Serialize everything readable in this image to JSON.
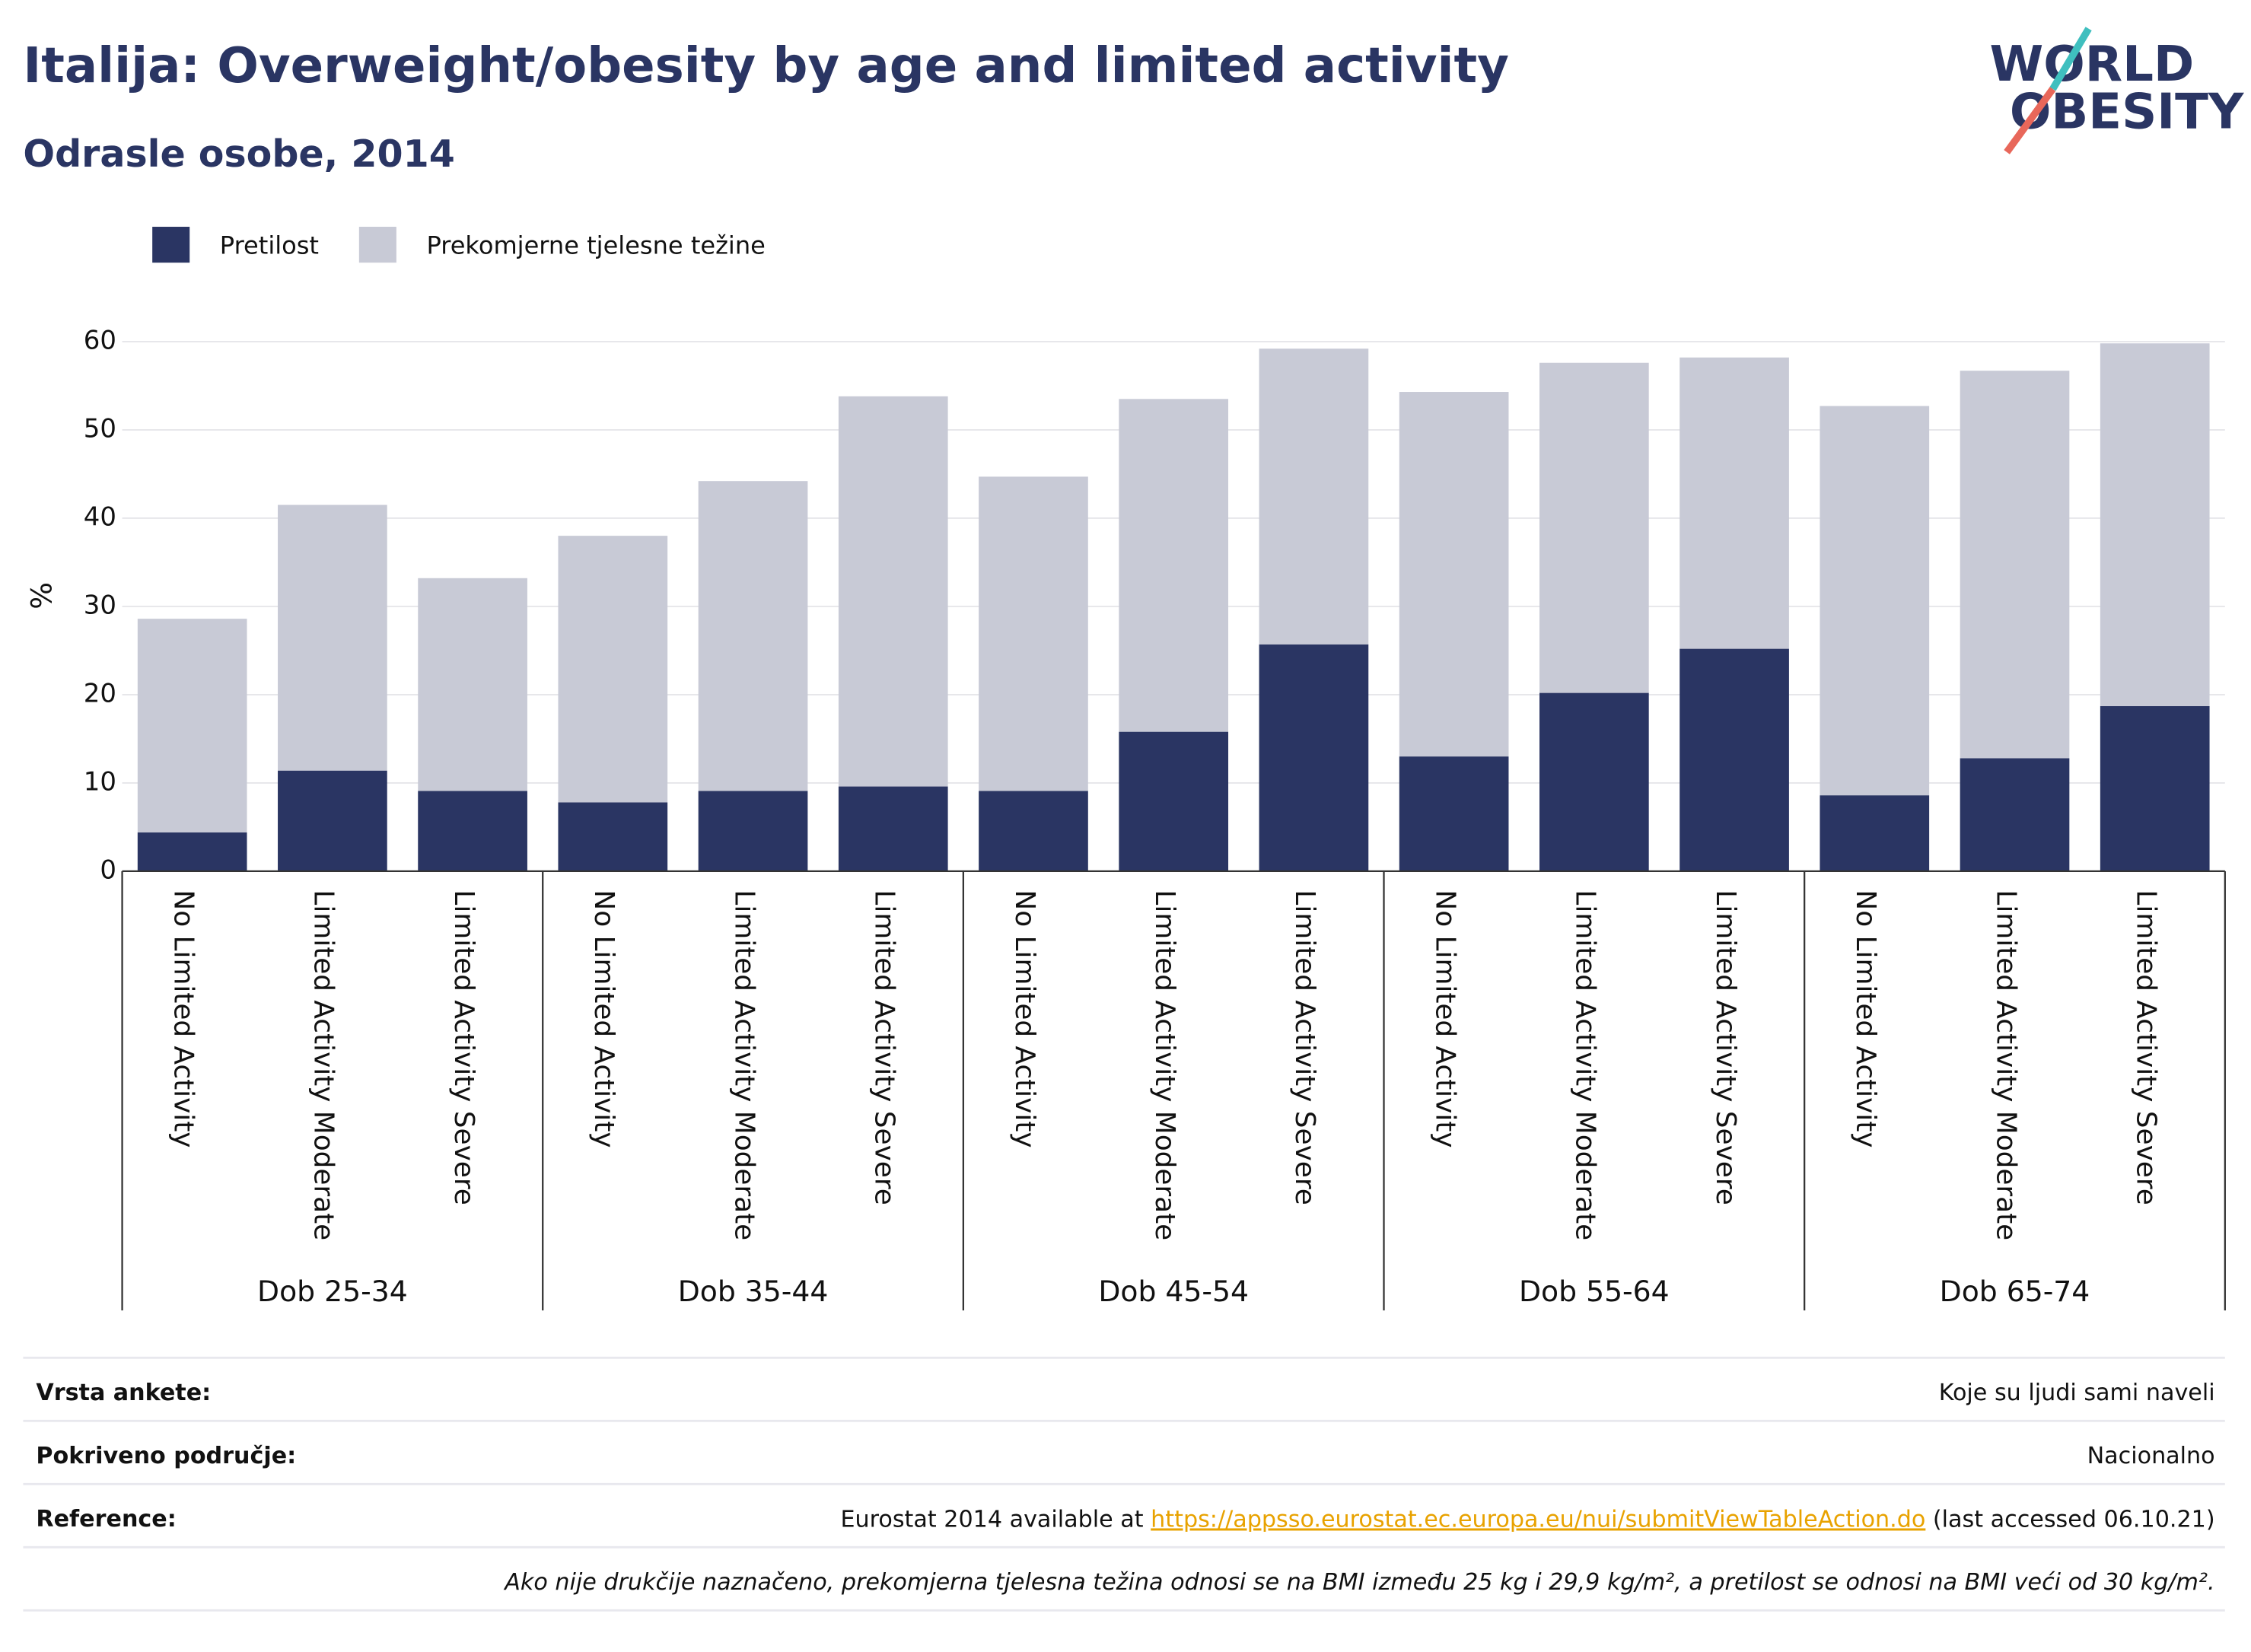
{
  "chart_data": {
    "type": "stacked_bar",
    "title": "Italija: Overweight/obesity by age and limited activity",
    "subtitle": "Odrasle osobe, 2014",
    "y_label": "%",
    "categories": [
      "No Limited Activity",
      "Limited Activity Moderate",
      "Limited Activity Severe",
      "No Limited Activity",
      "Limited Activity Moderate",
      "Limited Activity Severe",
      "No Limited Activity",
      "Limited Activity Moderate",
      "Limited Activity Severe",
      "No Limited Activity",
      "Limited Activity Moderate",
      "Limited Activity Severe",
      "No Limited Activity",
      "Limited Activity Moderate",
      "Limited Activity Severe"
    ],
    "groups": [
      "Dob 25-34",
      "Dob 35-44",
      "Dob 45-54",
      "Dob 55-64",
      "Dob 65-74"
    ],
    "series": [
      {
        "name": "Pretilost",
        "color": "#2a3563",
        "values": [
          4.4,
          11.4,
          9.1,
          7.8,
          9.1,
          9.6,
          9.1,
          15.8,
          25.7,
          13.0,
          20.2,
          25.2,
          8.6,
          12.8,
          18.7
        ]
      },
      {
        "name": "Prekomjerne tjelesne težine",
        "color": "#c8cad6",
        "values": [
          24.2,
          30.1,
          24.1,
          30.2,
          35.1,
          44.2,
          35.6,
          37.7,
          33.5,
          41.3,
          37.4,
          33.0,
          44.1,
          43.9,
          41.1
        ]
      }
    ],
    "ylim": [
      0,
      60
    ],
    "yticks": [
      0,
      10,
      20,
      30,
      40,
      50,
      60
    ],
    "grid": true,
    "legend": "top-left"
  },
  "logo": {
    "line1": "WORLD",
    "line2": "OBESITY"
  },
  "footer": {
    "rows": [
      {
        "label": "Vrsta ankete:",
        "value": "Koje su ljudi sami naveli"
      },
      {
        "label": "Pokriveno područje:",
        "value": "Nacionalno"
      }
    ],
    "reference": {
      "label": "Reference:",
      "before": "Eurostat 2014 available at ",
      "link": "https://appsso.eurostat.ec.europa.eu/nui/submitViewTableAction.do",
      "after": " (last accessed 06.10.21)"
    },
    "note": "Ako nije drukčije naznačeno, prekomjerna tjelesna težina odnosi se na BMI između 25 kg i 29,9 kg/m², a pretilost se odnosi na BMI veći od 30 kg/m²."
  }
}
